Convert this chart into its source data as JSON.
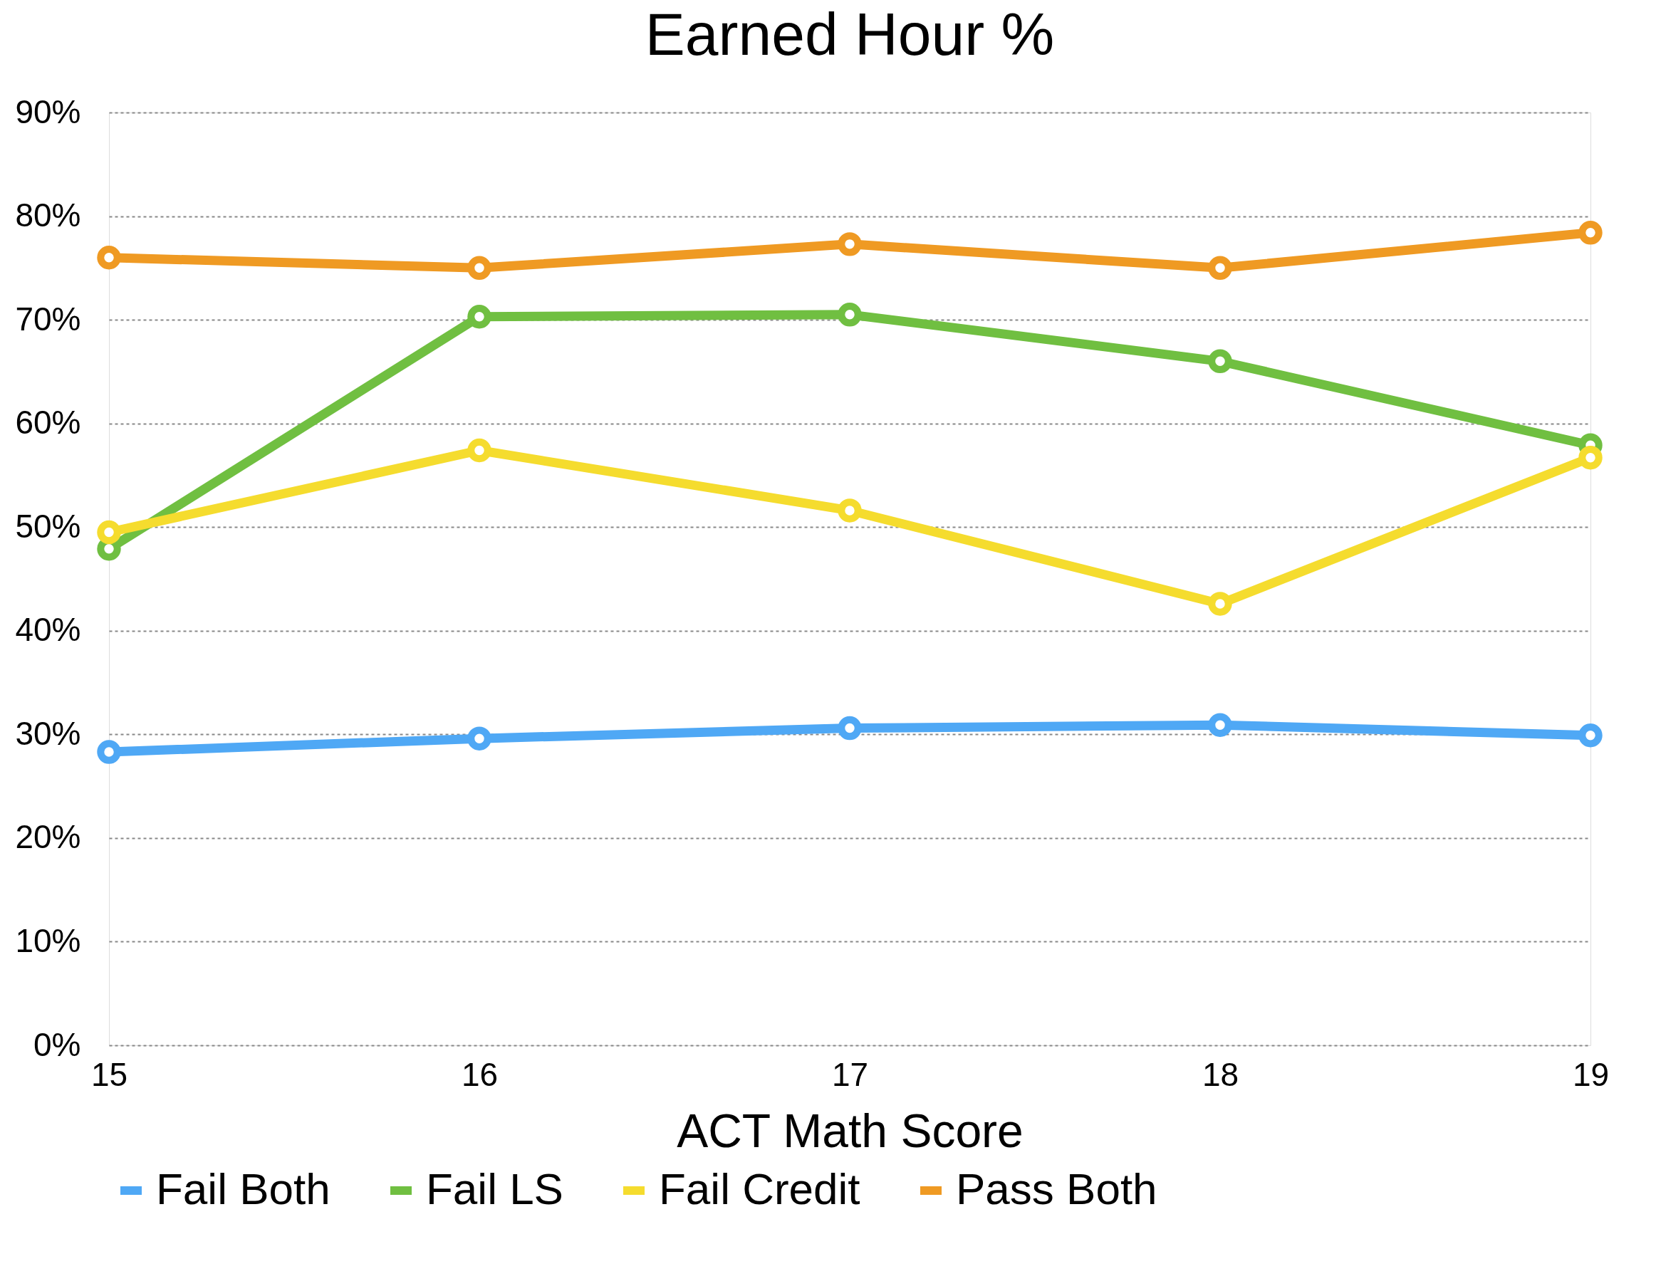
{
  "chart_data": {
    "type": "line",
    "title": "Earned Hour %",
    "xlabel": "ACT Math Score",
    "x": [
      15,
      16,
      17,
      18,
      19
    ],
    "series": [
      {
        "name": "Fail Both",
        "color": "#4fa8f5",
        "values": [
          28.3,
          29.6,
          30.6,
          30.9,
          29.9
        ]
      },
      {
        "name": "Fail LS",
        "color": "#70bf41",
        "values": [
          47.9,
          70.3,
          70.5,
          66.0,
          57.9
        ]
      },
      {
        "name": "Fail Credit",
        "color": "#f5dc2e",
        "values": [
          49.5,
          57.4,
          51.6,
          42.6,
          56.7
        ]
      },
      {
        "name": "Pass Both",
        "color": "#ef9a23",
        "values": [
          76.0,
          75.0,
          77.3,
          75.0,
          78.4
        ]
      }
    ],
    "xlim": [
      15,
      19
    ],
    "xticks": [
      15,
      16,
      17,
      18,
      19
    ],
    "ylim": [
      0,
      90
    ],
    "yticks": [
      {
        "value": 0,
        "label": "0%"
      },
      {
        "value": 10,
        "label": "10%"
      },
      {
        "value": 20,
        "label": "20%"
      },
      {
        "value": 30,
        "label": "30%"
      },
      {
        "value": 40,
        "label": "40%"
      },
      {
        "value": 50,
        "label": "50%"
      },
      {
        "value": 60,
        "label": "60%"
      },
      {
        "value": 70,
        "label": "70%"
      },
      {
        "value": 80,
        "label": "80%"
      },
      {
        "value": 90,
        "label": "90%"
      }
    ],
    "grid": "y",
    "legend": "bottom",
    "marker": "circle",
    "line_style": "solid"
  }
}
